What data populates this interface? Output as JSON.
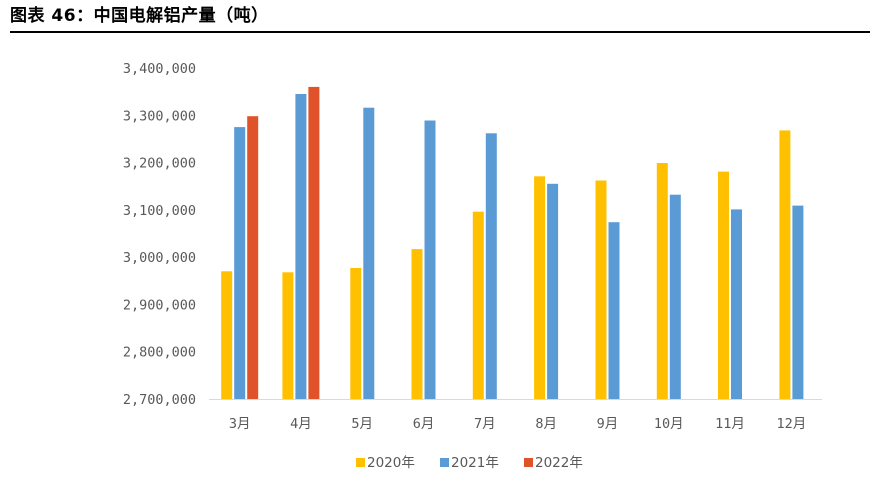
{
  "figure": {
    "title": "图表 46：中国电解铝产量（吨）"
  },
  "chart_data": {
    "type": "bar",
    "title": "",
    "xlabel": "",
    "ylabel": "",
    "categories": [
      "3月",
      "4月",
      "5月",
      "6月",
      "7月",
      "8月",
      "9月",
      "10月",
      "11月",
      "12月"
    ],
    "ylim": [
      2700000,
      3400000
    ],
    "yticks": [
      2700000,
      2800000,
      2900000,
      3000000,
      3100000,
      3200000,
      3300000,
      3400000
    ],
    "ytick_labels": [
      "2,700,000",
      "2,800,000",
      "2,900,000",
      "3,000,000",
      "3,100,000",
      "3,200,000",
      "3,300,000",
      "3,400,000"
    ],
    "grid": false,
    "legend_position": "bottom",
    "series": [
      {
        "name": "2020年",
        "color": "#FFC000",
        "values": [
          2970000,
          2968000,
          2977000,
          3017000,
          3096000,
          3171000,
          3162000,
          3199000,
          3181000,
          3268000
        ]
      },
      {
        "name": "2021年",
        "color": "#5B9BD5",
        "values": [
          3275000,
          3345000,
          3316000,
          3289000,
          3262000,
          3155000,
          3074000,
          3132000,
          3101000,
          3109000
        ]
      },
      {
        "name": "2022年",
        "color": "#E0532A",
        "values": [
          3298000,
          3360000,
          null,
          null,
          null,
          null,
          null,
          null,
          null,
          null
        ]
      }
    ]
  }
}
